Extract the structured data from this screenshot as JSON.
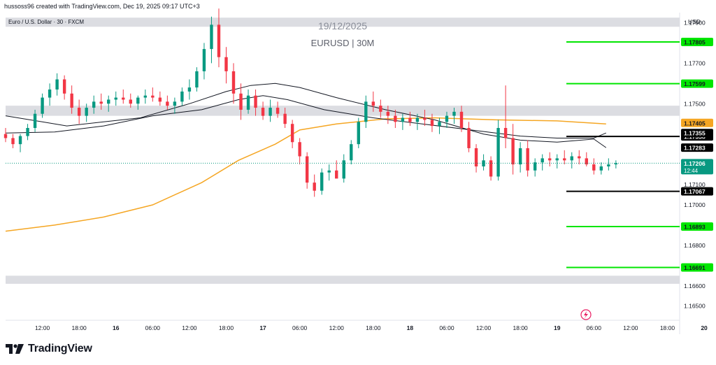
{
  "header": {
    "attribution": "hussoss96 created with TradingView.com, Dec 19, 2025 09:17 UTC+3",
    "symbol_label": "Euro / U.S. Dollar · 30 · FXCM",
    "currency": "USD"
  },
  "watermark": {
    "date": "19/12/2025",
    "title": "EURUSD | 30M"
  },
  "brand": {
    "name": "TradingView"
  },
  "chart_data": {
    "type": "candlestick",
    "symbol": "EURUSD",
    "timeframe": "30M",
    "y_axis": {
      "range": [
        1.1643,
        1.1795
      ],
      "ticks": [
        "1.17900",
        "1.17800",
        "1.17700",
        "1.17500",
        "1.17100",
        "1.17000",
        "1.16800",
        "1.16600",
        "1.16500"
      ]
    },
    "x_axis": {
      "range_hours": [
        0,
        110
      ],
      "ticks": [
        {
          "h": 6,
          "label": "12:00"
        },
        {
          "h": 12,
          "label": "18:00"
        },
        {
          "h": 18,
          "label": "16"
        },
        {
          "h": 24,
          "label": "06:00"
        },
        {
          "h": 30,
          "label": "12:00"
        },
        {
          "h": 36,
          "label": "18:00"
        },
        {
          "h": 42,
          "label": "17"
        },
        {
          "h": 48,
          "label": "06:00"
        },
        {
          "h": 54,
          "label": "12:00"
        },
        {
          "h": 60,
          "label": "18:00"
        },
        {
          "h": 66,
          "label": "18"
        },
        {
          "h": 72,
          "label": "06:00"
        },
        {
          "h": 78,
          "label": "12:00"
        },
        {
          "h": 84,
          "label": "18:00"
        },
        {
          "h": 90,
          "label": "19"
        },
        {
          "h": 96,
          "label": "06:00"
        },
        {
          "h": 102,
          "label": "12:00"
        },
        {
          "h": 108,
          "label": "18:00"
        },
        {
          "h": 114,
          "label": "20"
        }
      ]
    },
    "zones": [
      {
        "from": 1.17925,
        "to": 1.1788,
        "color": "#dcdde2"
      },
      {
        "from": 1.1749,
        "to": 1.1744,
        "color": "#dcdde2"
      },
      {
        "from": 1.1665,
        "to": 1.1661,
        "color": "#dcdde2"
      }
    ],
    "levels": [
      {
        "price": 1.17805,
        "label": "1.17805",
        "color": "#00e600",
        "box_color": "#00e600",
        "text_color": "#131722"
      },
      {
        "price": 1.17599,
        "label": "1.17599",
        "color": "#00e600",
        "box_color": "#00e600",
        "text_color": "#131722"
      },
      {
        "price": 1.17338,
        "label": "1.17338",
        "color": "#000000",
        "box_color": "#000000",
        "text_color": "#ffffff"
      },
      {
        "price": 1.17067,
        "label": "1.17067",
        "color": "#000000",
        "box_color": "#000000",
        "text_color": "#ffffff"
      },
      {
        "price": 1.16893,
        "label": "1.16893",
        "color": "#00e600",
        "box_color": "#00e600",
        "text_color": "#131722"
      },
      {
        "price": 1.16691,
        "label": "1.16691",
        "color": "#00e600",
        "box_color": "#00e600",
        "text_color": "#131722"
      }
    ],
    "indicator_labels": [
      {
        "price": 1.17405,
        "label": "1.17405",
        "box_color": "#f5a623",
        "text_color": "#131722"
      },
      {
        "price": 1.17355,
        "label": "1.17355",
        "box_color": "#000000",
        "text_color": "#ffffff"
      },
      {
        "price": 1.17283,
        "label": "1.17283",
        "box_color": "#000000",
        "text_color": "#ffffff"
      }
    ],
    "last_price": {
      "price": 1.17206,
      "label": "1.17206",
      "countdown": "12:44",
      "color": "#089981"
    },
    "moving_averages": [
      {
        "color": "#f5a623",
        "points": [
          [
            0,
            1.1687
          ],
          [
            8,
            1.169
          ],
          [
            16,
            1.1694
          ],
          [
            24,
            1.17
          ],
          [
            32,
            1.1711
          ],
          [
            38,
            1.1722
          ],
          [
            44,
            1.173
          ],
          [
            48,
            1.1737
          ],
          [
            54,
            1.174
          ],
          [
            62,
            1.17425
          ],
          [
            70,
            1.1743
          ],
          [
            80,
            1.1742
          ],
          [
            90,
            1.17415
          ],
          [
            98,
            1.174
          ]
        ]
      },
      {
        "color": "#131722",
        "points": [
          [
            0,
            1.1744
          ],
          [
            6,
            1.1741
          ],
          [
            10,
            1.1739
          ],
          [
            16,
            1.1741
          ],
          [
            22,
            1.1743
          ],
          [
            30,
            1.175
          ],
          [
            36,
            1.1756
          ],
          [
            40,
            1.1759
          ],
          [
            44,
            1.176
          ],
          [
            48,
            1.1758
          ],
          [
            54,
            1.1753
          ],
          [
            62,
            1.1747
          ],
          [
            70,
            1.1742
          ],
          [
            78,
            1.1735
          ],
          [
            84,
            1.1732
          ],
          [
            90,
            1.1731
          ],
          [
            96,
            1.17325
          ],
          [
            98,
            1.17283
          ]
        ]
      },
      {
        "color": "#131722",
        "points": [
          [
            0,
            1.17355
          ],
          [
            8,
            1.1736
          ],
          [
            16,
            1.1739
          ],
          [
            24,
            1.1744
          ],
          [
            32,
            1.1747
          ],
          [
            38,
            1.1752
          ],
          [
            42,
            1.1754
          ],
          [
            46,
            1.1752
          ],
          [
            52,
            1.1747
          ],
          [
            60,
            1.1743
          ],
          [
            68,
            1.174
          ],
          [
            76,
            1.1737
          ],
          [
            84,
            1.1734
          ],
          [
            90,
            1.1733
          ],
          [
            96,
            1.1733
          ],
          [
            98,
            1.17355
          ]
        ]
      }
    ],
    "candles": [
      [
        1.1735,
        1.1738,
        1.1731,
        1.1733
      ],
      [
        1.1733,
        1.1735,
        1.1728,
        1.173
      ],
      [
        1.173,
        1.1735,
        1.1726,
        1.1734
      ],
      [
        1.1734,
        1.174,
        1.1732,
        1.1738
      ],
      [
        1.1738,
        1.1747,
        1.1736,
        1.1745
      ],
      [
        1.1745,
        1.1755,
        1.1743,
        1.1753
      ],
      [
        1.1753,
        1.176,
        1.1749,
        1.1757
      ],
      [
        1.1757,
        1.1765,
        1.1754,
        1.1762
      ],
      [
        1.1762,
        1.1764,
        1.1752,
        1.1755
      ],
      [
        1.1755,
        1.1759,
        1.1745,
        1.1748
      ],
      [
        1.1748,
        1.1752,
        1.174,
        1.1744
      ],
      [
        1.1744,
        1.175,
        1.1741,
        1.1748
      ],
      [
        1.1748,
        1.1754,
        1.1745,
        1.1751
      ],
      [
        1.1751,
        1.1755,
        1.1747,
        1.175
      ],
      [
        1.175,
        1.1754,
        1.1746,
        1.1752
      ],
      [
        1.1752,
        1.1756,
        1.1749,
        1.1753
      ],
      [
        1.1753,
        1.1757,
        1.175,
        1.1752
      ],
      [
        1.1752,
        1.1755,
        1.1748,
        1.175
      ],
      [
        1.175,
        1.1754,
        1.1747,
        1.1753
      ],
      [
        1.1753,
        1.1757,
        1.175,
        1.1754
      ],
      [
        1.1754,
        1.1758,
        1.1751,
        1.1753
      ],
      [
        1.1753,
        1.1756,
        1.1749,
        1.1751
      ],
      [
        1.1751,
        1.1754,
        1.1747,
        1.1749
      ],
      [
        1.1749,
        1.1753,
        1.1745,
        1.1751
      ],
      [
        1.1751,
        1.1758,
        1.1749,
        1.1756
      ],
      [
        1.1756,
        1.1762,
        1.1752,
        1.1758
      ],
      [
        1.1758,
        1.1768,
        1.1756,
        1.1766
      ],
      [
        1.1766,
        1.178,
        1.1762,
        1.1777
      ],
      [
        1.1777,
        1.1793,
        1.177,
        1.1789
      ],
      [
        1.1789,
        1.1797,
        1.1768,
        1.1773
      ],
      [
        1.1773,
        1.1778,
        1.176,
        1.1766
      ],
      [
        1.1766,
        1.177,
        1.175,
        1.1755
      ],
      [
        1.1755,
        1.176,
        1.1742,
        1.1747
      ],
      [
        1.1747,
        1.1757,
        1.1745,
        1.1754
      ],
      [
        1.1754,
        1.1757,
        1.1744,
        1.1748
      ],
      [
        1.1748,
        1.1751,
        1.1742,
        1.1744
      ],
      [
        1.1744,
        1.1752,
        1.1741,
        1.1748
      ],
      [
        1.1748,
        1.1751,
        1.1743,
        1.1745
      ],
      [
        1.1745,
        1.1748,
        1.1738,
        1.174
      ],
      [
        1.174,
        1.1742,
        1.1728,
        1.1731
      ],
      [
        1.1731,
        1.1733,
        1.172,
        1.1724
      ],
      [
        1.1724,
        1.1726,
        1.1708,
        1.1711
      ],
      [
        1.1711,
        1.1715,
        1.1704,
        1.1707
      ],
      [
        1.1707,
        1.1718,
        1.1705,
        1.1716
      ],
      [
        1.1716,
        1.172,
        1.1712,
        1.1717
      ],
      [
        1.1717,
        1.1722,
        1.1714,
        1.1713
      ],
      [
        1.1713,
        1.1725,
        1.1711,
        1.1722
      ],
      [
        1.1722,
        1.1732,
        1.172,
        1.173
      ],
      [
        1.173,
        1.1743,
        1.1728,
        1.1741
      ],
      [
        1.1741,
        1.1754,
        1.1738,
        1.1751
      ],
      [
        1.1751,
        1.1756,
        1.1746,
        1.1749
      ],
      [
        1.1749,
        1.1752,
        1.1743,
        1.1746
      ],
      [
        1.1746,
        1.1749,
        1.174,
        1.1744
      ],
      [
        1.1744,
        1.1747,
        1.1738,
        1.1741
      ],
      [
        1.1741,
        1.1745,
        1.1737,
        1.1743
      ],
      [
        1.1743,
        1.1746,
        1.1739,
        1.1741
      ],
      [
        1.1741,
        1.1745,
        1.1737,
        1.1743
      ],
      [
        1.1743,
        1.1747,
        1.1739,
        1.1742
      ],
      [
        1.1742,
        1.1745,
        1.1736,
        1.1739
      ],
      [
        1.1739,
        1.1743,
        1.1735,
        1.1741
      ],
      [
        1.1741,
        1.1746,
        1.1738,
        1.1744
      ],
      [
        1.1744,
        1.1748,
        1.174,
        1.1746
      ],
      [
        1.1746,
        1.1749,
        1.1736,
        1.1738
      ],
      [
        1.1738,
        1.1741,
        1.1726,
        1.1728
      ],
      [
        1.1728,
        1.173,
        1.1716,
        1.1719
      ],
      [
        1.1719,
        1.1725,
        1.1717,
        1.1722
      ],
      [
        1.1722,
        1.1724,
        1.1712,
        1.1714
      ],
      [
        1.1714,
        1.1742,
        1.1712,
        1.1738
      ],
      [
        1.1738,
        1.1759,
        1.1728,
        1.1733
      ],
      [
        1.1733,
        1.174,
        1.1715,
        1.172
      ],
      [
        1.172,
        1.1731,
        1.1716,
        1.1728
      ],
      [
        1.1728,
        1.1732,
        1.1714,
        1.1717
      ],
      [
        1.1717,
        1.1723,
        1.1714,
        1.1721
      ],
      [
        1.1721,
        1.1725,
        1.1717,
        1.1723
      ],
      [
        1.1723,
        1.1726,
        1.1719,
        1.1722
      ],
      [
        1.1722,
        1.1725,
        1.1718,
        1.1723
      ],
      [
        1.1723,
        1.1727,
        1.172,
        1.1722
      ],
      [
        1.1722,
        1.1726,
        1.1718,
        1.1724
      ],
      [
        1.1724,
        1.1727,
        1.172,
        1.1723
      ],
      [
        1.1723,
        1.1726,
        1.1719,
        1.172
      ],
      [
        1.172,
        1.1723,
        1.1715,
        1.1717
      ],
      [
        1.1717,
        1.1721,
        1.1715,
        1.1719
      ],
      [
        1.1719,
        1.1723,
        1.1717,
        1.172
      ],
      [
        1.172,
        1.1722,
        1.1718,
        1.17206
      ]
    ]
  }
}
